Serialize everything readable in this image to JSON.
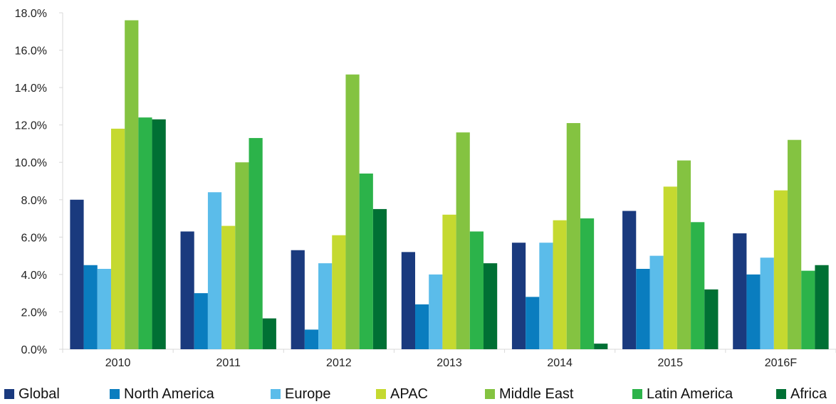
{
  "chart_data": {
    "type": "bar",
    "categories": [
      "2010",
      "2011",
      "2012",
      "2013",
      "2014",
      "2015",
      "2016F"
    ],
    "ylim": [
      0,
      18
    ],
    "ytick_labels": [
      "0.0%",
      "2.0%",
      "4.0%",
      "6.0%",
      "8.0%",
      "10.0%",
      "12.0%",
      "14.0%",
      "16.0%",
      "18.0%"
    ],
    "yticks": [
      0,
      2,
      4,
      6,
      8,
      10,
      12,
      14,
      16,
      18
    ],
    "grid": false,
    "legend_position": "bottom",
    "series": [
      {
        "name": "Global",
        "color": "#1a3a7e",
        "values": [
          8.0,
          6.3,
          5.3,
          5.2,
          5.7,
          7.4,
          6.2
        ]
      },
      {
        "name": "North America",
        "color": "#0a7dbf",
        "values": [
          4.5,
          3.0,
          1.05,
          2.4,
          2.8,
          4.3,
          4.0
        ]
      },
      {
        "name": "Europe",
        "color": "#5bbcea",
        "values": [
          4.3,
          8.4,
          4.6,
          4.0,
          5.7,
          5.0,
          4.9
        ]
      },
      {
        "name": "APAC",
        "color": "#c5d930",
        "values": [
          11.8,
          6.6,
          6.1,
          7.2,
          6.9,
          8.7,
          8.5
        ]
      },
      {
        "name": "Middle East",
        "color": "#84c341",
        "values": [
          17.6,
          10.0,
          14.7,
          11.6,
          12.1,
          10.1,
          11.2
        ]
      },
      {
        "name": "Latin America",
        "color": "#2cb34a",
        "values": [
          12.4,
          11.3,
          9.4,
          6.3,
          7.0,
          6.8,
          4.2
        ]
      },
      {
        "name": "Africa",
        "color": "#007034",
        "values": [
          12.3,
          1.65,
          7.5,
          4.6,
          0.3,
          3.2,
          4.5
        ]
      }
    ]
  }
}
